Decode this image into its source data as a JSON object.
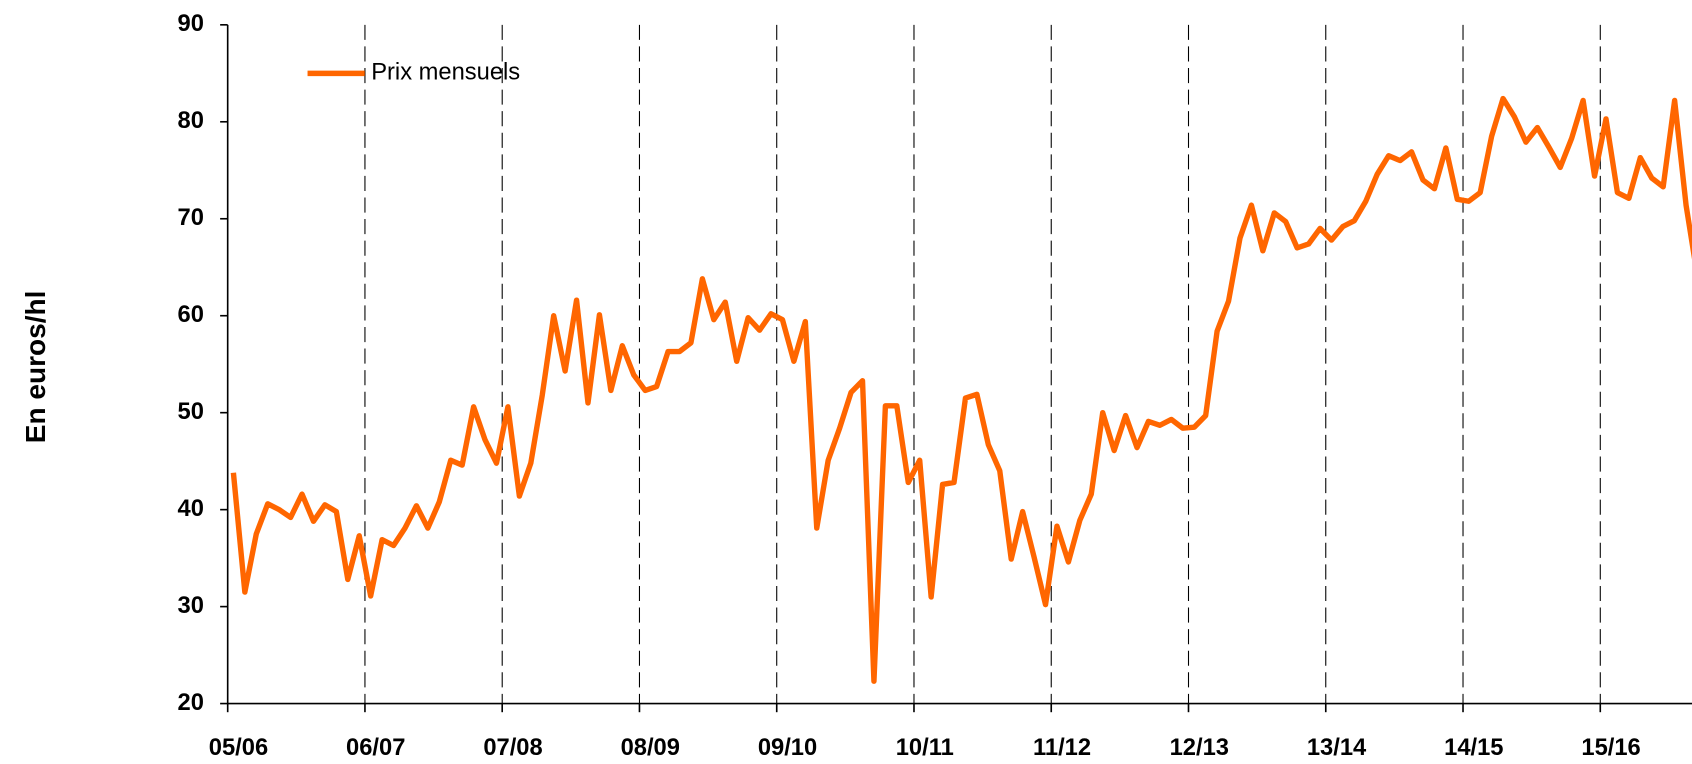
{
  "chart_data": {
    "type": "line",
    "y_label": "En euros/hl",
    "categories": [
      "05/06",
      null,
      null,
      null,
      null,
      null,
      null,
      null,
      null,
      null,
      null,
      null,
      "06/07",
      null,
      null,
      null,
      null,
      null,
      null,
      null,
      null,
      null,
      null,
      null,
      "07/08",
      null,
      null,
      null,
      null,
      null,
      null,
      null,
      null,
      null,
      null,
      null,
      "08/09",
      null,
      null,
      null,
      null,
      null,
      null,
      null,
      null,
      null,
      null,
      null,
      "09/10",
      null,
      null,
      null,
      null,
      null,
      null,
      null,
      null,
      null,
      null,
      null,
      "10/11",
      null,
      null,
      null,
      null,
      null,
      null,
      null,
      null,
      null,
      null,
      null,
      "11/12",
      null,
      null,
      null,
      null,
      null,
      null,
      null,
      null,
      null,
      null,
      null,
      "12/13",
      null,
      null,
      null,
      null,
      null,
      null,
      null,
      null,
      null,
      null,
      null,
      "13/14",
      null,
      null,
      null,
      null,
      null,
      null,
      null,
      null,
      null,
      null,
      null,
      "14/15",
      null,
      null,
      null,
      null,
      null,
      null,
      null,
      null,
      null,
      null,
      null,
      "15/16",
      null,
      null,
      null,
      null,
      null,
      null,
      null,
      null
    ],
    "series": [
      {
        "name": "Prix mensuels",
        "color": "#ff6600",
        "values": [
          43.8,
          31.5,
          37.5,
          40.6,
          40.0,
          39.2,
          41.6,
          38.8,
          40.5,
          39.8,
          32.8,
          37.3,
          31.1,
          36.9,
          36.3,
          38.1,
          40.4,
          38.1,
          40.8,
          45.1,
          44.6,
          50.6,
          47.2,
          44.8,
          50.6,
          41.4,
          44.8,
          51.8,
          60.0,
          54.3,
          61.6,
          51.0,
          60.1,
          52.3,
          56.9,
          53.9,
          52.3,
          52.7,
          56.3,
          56.3,
          57.2,
          63.8,
          59.6,
          61.4,
          55.3,
          59.8,
          58.5,
          60.2,
          59.6,
          55.3,
          59.4,
          38.1,
          45.1,
          48.4,
          52.1,
          53.3,
          22.3,
          50.7,
          50.7,
          42.8,
          45.1,
          31.0,
          42.6,
          42.8,
          51.5,
          51.9,
          46.7,
          44.0,
          34.9,
          39.8,
          35.1,
          30.2,
          38.3,
          34.6,
          38.9,
          41.6,
          50.0,
          46.1,
          49.7,
          46.4,
          49.1,
          48.7,
          49.3,
          48.4,
          48.5,
          49.7,
          58.4,
          61.5,
          68.0,
          71.4,
          66.7,
          70.6,
          69.7,
          67.0,
          67.4,
          69.0,
          67.8,
          69.2,
          69.8,
          71.8,
          74.6,
          76.5,
          76.0,
          76.9,
          74.0,
          73.1,
          77.3,
          72.0,
          71.8,
          72.7,
          78.5,
          82.4,
          80.5,
          77.9,
          79.4,
          77.4,
          75.3,
          78.3,
          82.2,
          74.4,
          80.3,
          72.7,
          72.1,
          76.3,
          74.2,
          73.3,
          82.2,
          71.4,
          64.0
        ]
      }
    ],
    "ylim": [
      20,
      90
    ],
    "yticks": [
      20,
      30,
      40,
      50,
      60,
      70,
      80,
      90
    ],
    "legend": "upper left"
  }
}
